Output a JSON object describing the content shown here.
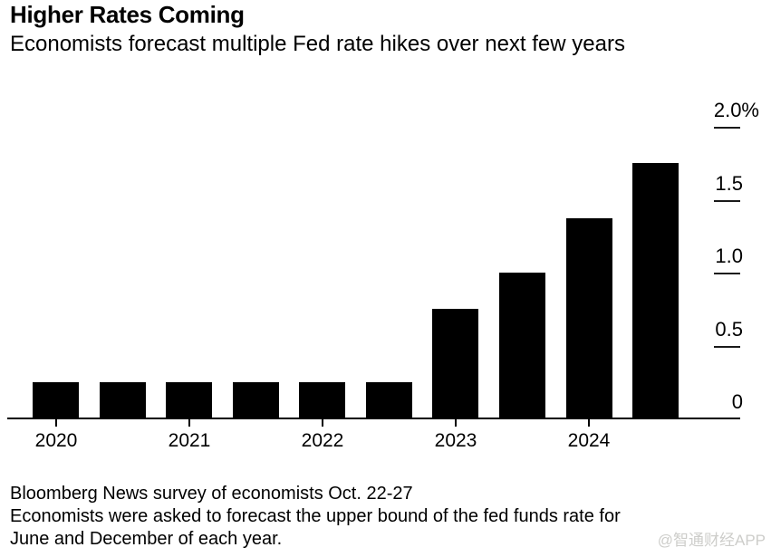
{
  "header": {
    "title": "Higher Rates Coming",
    "subtitle": "Economists forecast multiple Fed rate hikes over next few years"
  },
  "chart_data": {
    "type": "bar",
    "title": "Higher Rates Coming",
    "subtitle": "Economists forecast multiple Fed rate hikes over next few years",
    "unit": "%",
    "categories": [
      "2020 June",
      "2020 December",
      "2021 June",
      "2021 December",
      "2022 June",
      "2022 December",
      "2023 June",
      "2023 December",
      "2024 June",
      "2024 December"
    ],
    "values": [
      0.25,
      0.25,
      0.25,
      0.25,
      0.25,
      0.25,
      0.75,
      1.0,
      1.375,
      1.75
    ],
    "x_tick_labels": [
      "2020",
      "2021",
      "2022",
      "2023",
      "2024"
    ],
    "y_ticks": [
      {
        "label": "2.0%",
        "value": 2.0
      },
      {
        "label": "1.5",
        "value": 1.5
      },
      {
        "label": "1.0",
        "value": 1.0
      },
      {
        "label": "0.5",
        "value": 0.5
      },
      {
        "label": "0",
        "value": 0
      }
    ],
    "ylim": [
      0,
      2.0
    ],
    "y_axis_side": "right",
    "grid": false,
    "legend": false,
    "bar_color": "#000000",
    "background_color": "#ffffff"
  },
  "footer": {
    "lines": [
      "Bloomberg News survey of economists Oct. 22-27",
      "Economists were asked to forecast the upper bound of the fed funds rate for",
      "June and December of each year."
    ]
  },
  "watermark": {
    "text": "@智通财经APP",
    "color": "#cdcdca"
  }
}
